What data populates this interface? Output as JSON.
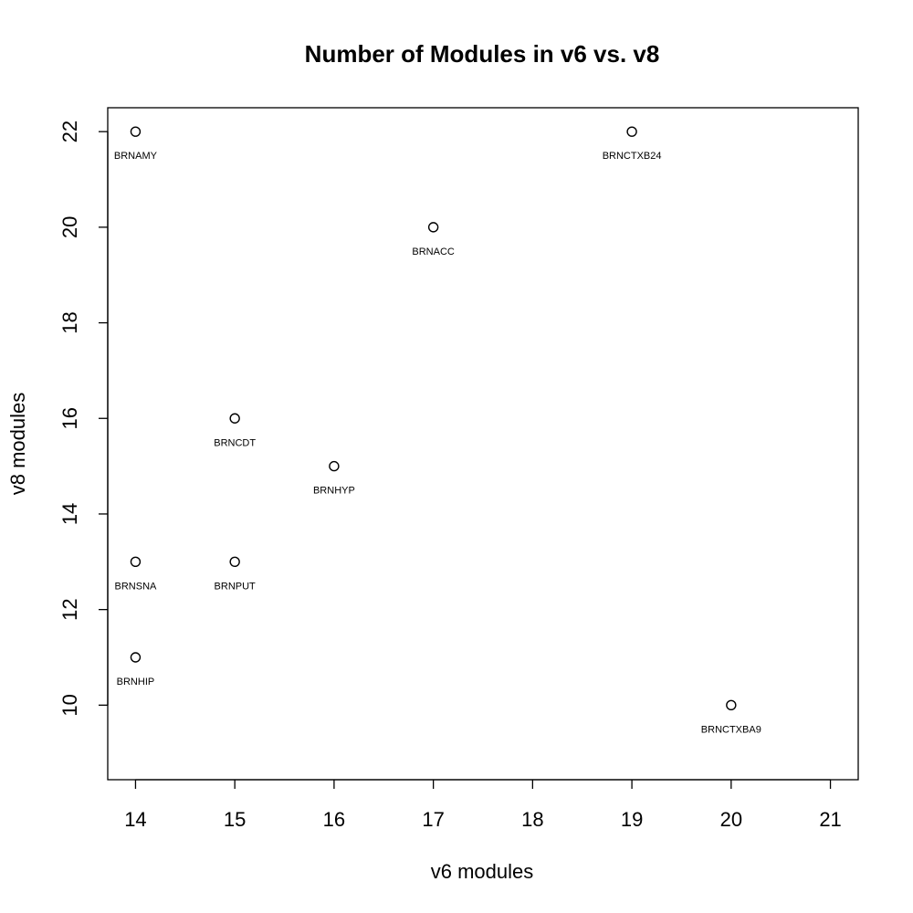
{
  "chart_data": {
    "type": "scatter",
    "title": "Number of Modules in v6 vs. v8",
    "xlabel": "v6 modules",
    "ylabel": "v8 modules",
    "xlim": [
      13.72,
      21.28
    ],
    "ylim": [
      8.44,
      22.5
    ],
    "x_ticks": [
      14,
      15,
      16,
      17,
      18,
      19,
      20,
      21
    ],
    "y_ticks": [
      10,
      12,
      14,
      16,
      18,
      20,
      22
    ],
    "grid": false,
    "marker": "open-circle",
    "points": [
      {
        "label": "BRNAMY",
        "x": 14,
        "y": 22
      },
      {
        "label": "BRNCTXB24",
        "x": 19,
        "y": 22
      },
      {
        "label": "BRNACC",
        "x": 17,
        "y": 20
      },
      {
        "label": "BRNCDT",
        "x": 15,
        "y": 16
      },
      {
        "label": "BRNHYP",
        "x": 16,
        "y": 15
      },
      {
        "label": "BRNSNA",
        "x": 14,
        "y": 13
      },
      {
        "label": "BRNPUT",
        "x": 15,
        "y": 13
      },
      {
        "label": "BRNHIP",
        "x": 14,
        "y": 11
      },
      {
        "label": "BRNCTXBA9",
        "x": 20,
        "y": 10
      }
    ]
  }
}
